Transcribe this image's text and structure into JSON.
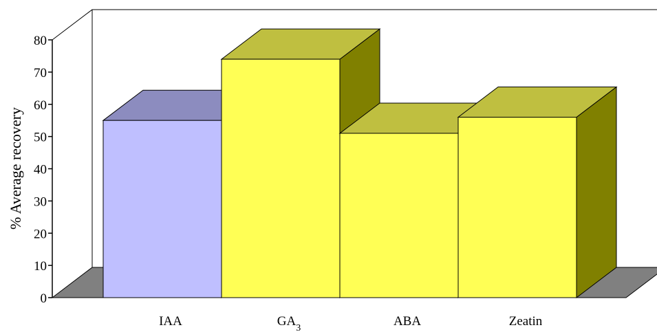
{
  "chart_data": {
    "type": "bar",
    "categories": [
      "IAA",
      "GA",
      "ABA",
      "Zeatin"
    ],
    "category_subscripts": [
      "",
      "3",
      "",
      ""
    ],
    "values": [
      55,
      74,
      51,
      56
    ],
    "ylabel": "% Average recovery",
    "xlabel": "",
    "ylim": [
      0,
      80
    ],
    "yticks": [
      0,
      10,
      20,
      30,
      40,
      50,
      60,
      70,
      80
    ],
    "grid": false,
    "legend": "none",
    "three_d": true
  },
  "colors": {
    "bar_fronts": [
      "#BFBFFF",
      "#FFFF55",
      "#FFFF55",
      "#FFFF55"
    ],
    "bar_tops": [
      "#8C8CBF",
      "#BFBF40",
      "#BFBF40",
      "#BFBF40"
    ],
    "bar_sides": [
      "#666699",
      "#808000",
      "#808000",
      "#808000"
    ],
    "floor": "#808080",
    "axis": "#000000"
  }
}
